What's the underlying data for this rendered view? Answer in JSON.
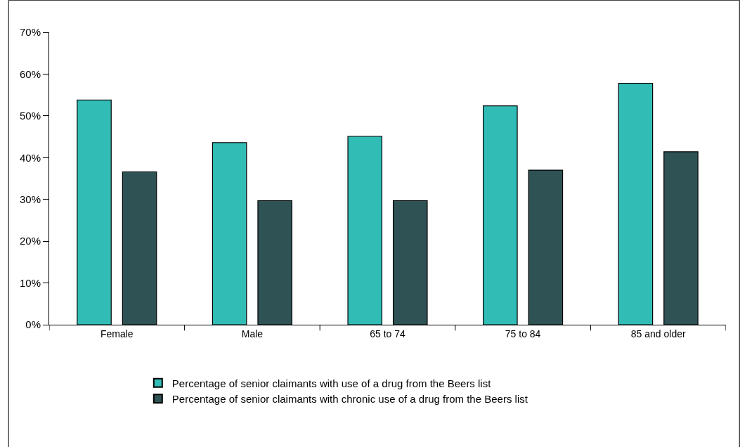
{
  "chart_data": {
    "type": "bar",
    "categories": [
      "Female",
      "Male",
      "65 to 74",
      "75 to 84",
      "85 and older"
    ],
    "series": [
      {
        "name": "Percentage of senior claimants with use of a drug from the Beers list",
        "color": "#31bdb5",
        "values": [
          53.8,
          43.6,
          45.1,
          52.4,
          57.8
        ]
      },
      {
        "name": "Percentage of senior claimants with chronic use of a drug from the Beers list",
        "color": "#2f5254",
        "values": [
          36.6,
          29.7,
          29.7,
          37.0,
          41.4
        ]
      }
    ],
    "ylim": [
      0,
      70
    ],
    "yticks": [
      {
        "value": 0,
        "label": "0%"
      },
      {
        "value": 10,
        "label": "10%"
      },
      {
        "value": 20,
        "label": "20%"
      },
      {
        "value": 30,
        "label": "30%"
      },
      {
        "value": 40,
        "label": "40%"
      },
      {
        "value": 50,
        "label": "50%"
      },
      {
        "value": 60,
        "label": "60%"
      },
      {
        "value": 70,
        "label": "70%"
      }
    ],
    "legend": "bottom"
  }
}
